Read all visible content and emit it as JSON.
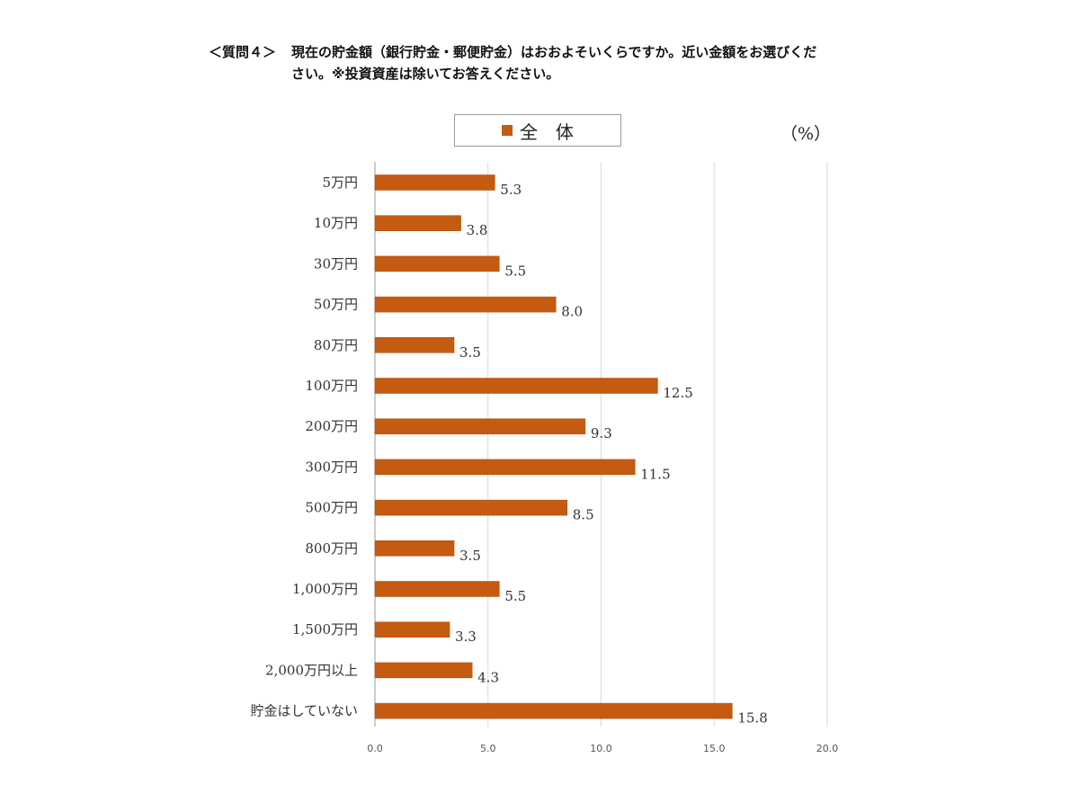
{
  "question": {
    "label": "＜質問４＞",
    "line1": "現在の貯金額（銀行貯金・郵便貯金）はおおよそいくらですか。近い金額をお選びくだ",
    "line2": "さい。※投資資産は除いてお答えください。"
  },
  "legend": {
    "label": "全　体"
  },
  "unit": "（%）",
  "chart_data": {
    "type": "bar",
    "orientation": "horizontal",
    "categories": [
      "5万円",
      "10万円",
      "30万円",
      "50万円",
      "80万円",
      "100万円",
      "200万円",
      "300万円",
      "500万円",
      "800万円",
      "1,000万円",
      "1,500万円",
      "2,000万円以上",
      "貯金はしていない"
    ],
    "series": [
      {
        "name": "全　体",
        "values": [
          5.3,
          3.8,
          5.5,
          8.0,
          3.5,
          12.5,
          9.3,
          11.5,
          8.5,
          3.5,
          5.5,
          3.3,
          4.3,
          15.8
        ]
      }
    ],
    "value_labels": [
      "5.3",
      "3.8",
      "5.5",
      "8.0",
      "3.5",
      "12.5",
      "9.3",
      "11.5",
      "8.5",
      "3.5",
      "5.5",
      "3.3",
      "4.3",
      "15.8"
    ],
    "xlim": [
      0,
      20
    ],
    "xticks": [
      0,
      5,
      10,
      15,
      20
    ],
    "xtick_labels": [
      "0.0",
      "5.0",
      "10.0",
      "15.0",
      "20.0"
    ],
    "grid": "vertical",
    "legend_position": "top-center",
    "bar_color": "#c55a11"
  }
}
